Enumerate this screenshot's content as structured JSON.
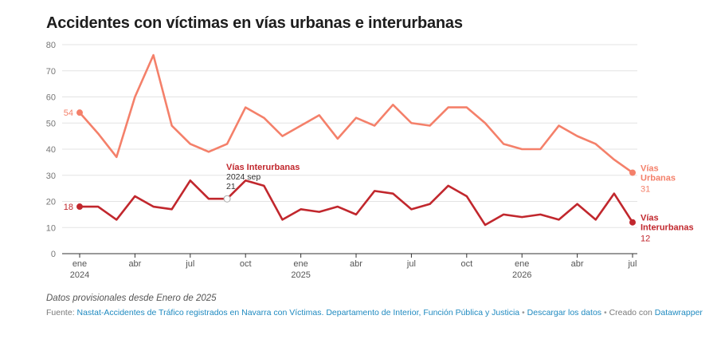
{
  "title": "Accidentes con víctimas en vías urbanas e interurbanas",
  "note": "Datos provisionales desde Enero de 2025",
  "footer": {
    "source_label": "Fuente:",
    "source_link": "Nastat-Accidentes de Tráfico registrados en Navarra con Víctimas. Departamento de Interior, Función Pública y Justicia",
    "separator": "•",
    "download_link": "Descargar los datos",
    "created_with": "Creado con",
    "datawrapper_link": "Datawrapper"
  },
  "tooltip": {
    "series": "Vías Interurbanas",
    "date": "2024 sep",
    "value": "21"
  },
  "chart_data": {
    "type": "line",
    "title": "Accidentes con víctimas en vías urbanas e interurbanas",
    "x": [
      "2024-01",
      "2024-02",
      "2024-03",
      "2024-04",
      "2024-05",
      "2024-06",
      "2024-07",
      "2024-08",
      "2024-09",
      "2024-10",
      "2024-11",
      "2024-12",
      "2025-01",
      "2025-02",
      "2025-03",
      "2025-04",
      "2025-05",
      "2025-06",
      "2025-07",
      "2025-08",
      "2025-09",
      "2025-10",
      "2025-11",
      "2025-12",
      "2026-01",
      "2026-02",
      "2026-03",
      "2026-04",
      "2026-05",
      "2026-06",
      "2026-07"
    ],
    "x_ticks": [
      {
        "label": "ene",
        "year": "2024",
        "index": 0
      },
      {
        "label": "abr",
        "year": "",
        "index": 3
      },
      {
        "label": "jul",
        "year": "",
        "index": 6
      },
      {
        "label": "oct",
        "year": "",
        "index": 9
      },
      {
        "label": "ene",
        "year": "2025",
        "index": 12
      },
      {
        "label": "abr",
        "year": "",
        "index": 15
      },
      {
        "label": "jul",
        "year": "",
        "index": 18
      },
      {
        "label": "oct",
        "year": "",
        "index": 21
      },
      {
        "label": "ene",
        "year": "2026",
        "index": 24
      },
      {
        "label": "abr",
        "year": "",
        "index": 27
      },
      {
        "label": "jul",
        "year": "",
        "index": 30
      }
    ],
    "ylim": [
      0,
      80
    ],
    "y_ticks": [
      0,
      10,
      20,
      30,
      40,
      50,
      60,
      70,
      80
    ],
    "grid": true,
    "series": [
      {
        "name": "Vías Urbanas",
        "label_lines": [
          "Vías",
          "Urbanas"
        ],
        "color": "#f4806a",
        "values": [
          54,
          46,
          37,
          60,
          76,
          49,
          42,
          39,
          42,
          56,
          52,
          45,
          49,
          53,
          44,
          52,
          49,
          57,
          50,
          49,
          56,
          56,
          50,
          42,
          40,
          40,
          49,
          45,
          42,
          36,
          31
        ],
        "start_label": "54",
        "end_label": "31"
      },
      {
        "name": "Vías Interurbanas",
        "label_lines": [
          "Vías",
          "Interurbanas"
        ],
        "color": "#c1272d",
        "values": [
          18,
          18,
          13,
          22,
          18,
          17,
          28,
          21,
          21,
          28,
          26,
          13,
          17,
          16,
          18,
          15,
          24,
          23,
          17,
          19,
          26,
          22,
          11,
          15,
          14,
          15,
          13,
          19,
          13,
          23,
          12
        ],
        "start_label": "18",
        "end_label": "12"
      }
    ]
  }
}
